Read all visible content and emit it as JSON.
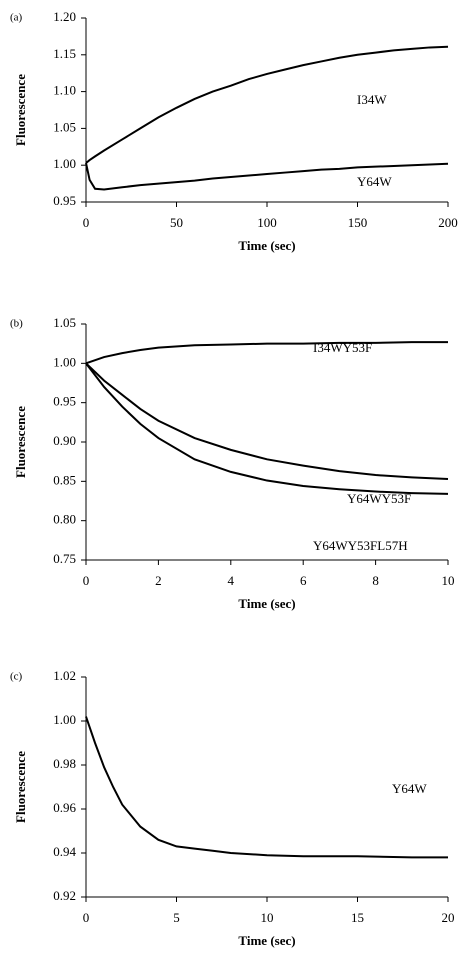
{
  "chart_data": [
    {
      "type": "line",
      "label": "(a)",
      "xlabel": "Time (sec)",
      "ylabel": "Fluorescence",
      "x": [
        0,
        2,
        5,
        10,
        20,
        30,
        40,
        50,
        60,
        70,
        80,
        90,
        100,
        110,
        120,
        130,
        140,
        150,
        160,
        170,
        180,
        190,
        200
      ],
      "series": [
        {
          "name": "I34W",
          "color": "#000000",
          "values": [
            1.003,
            1.007,
            1.012,
            1.02,
            1.035,
            1.05,
            1.065,
            1.078,
            1.09,
            1.1,
            1.108,
            1.117,
            1.124,
            1.13,
            1.136,
            1.141,
            1.146,
            1.15,
            1.153,
            1.156,
            1.158,
            1.16,
            1.161
          ]
        },
        {
          "name": "Y64W",
          "color": "#000000",
          "values": [
            1.003,
            0.98,
            0.968,
            0.967,
            0.97,
            0.973,
            0.975,
            0.977,
            0.979,
            0.982,
            0.984,
            0.986,
            0.988,
            0.99,
            0.992,
            0.994,
            0.995,
            0.997,
            0.998,
            0.999,
            1.0,
            1.001,
            1.002
          ]
        }
      ],
      "xlim": [
        0,
        200
      ],
      "xticks": [
        0,
        50,
        100,
        150,
        200
      ],
      "ylim": [
        0.95,
        1.2
      ],
      "yticks": [
        0.95,
        {
          "value": 1.0,
          "label": "1.00"
        },
        1.05,
        {
          "value": 1.1,
          "label": "1.10"
        },
        1.15,
        {
          "value": 1.2,
          "label": "1.20"
        }
      ]
    },
    {
      "type": "line",
      "label": "(b)",
      "xlabel": "Time (sec)",
      "ylabel": "Fluorescence",
      "x": [
        0,
        0.5,
        1,
        1.5,
        2,
        3,
        4,
        5,
        6,
        7,
        8,
        9,
        10
      ],
      "series": [
        {
          "name": "I34WY53F",
          "color": "#000000",
          "values": [
            1.0,
            1.008,
            1.013,
            1.017,
            1.02,
            1.023,
            1.024,
            1.025,
            1.025,
            1.026,
            1.026,
            1.027,
            1.027
          ]
        },
        {
          "name": "Y64WY53F",
          "color": "#000000",
          "values": [
            1.0,
            0.978,
            0.96,
            0.942,
            0.927,
            0.905,
            0.89,
            0.878,
            0.87,
            0.863,
            0.858,
            0.855,
            0.853
          ]
        },
        {
          "name": "Y64WY53FL57H",
          "color": "#000000",
          "values": [
            1.0,
            0.97,
            0.945,
            0.923,
            0.905,
            0.878,
            0.862,
            0.851,
            0.844,
            0.84,
            0.837,
            0.835,
            0.834
          ]
        }
      ],
      "xlim": [
        0,
        10
      ],
      "xticks": [
        0,
        2,
        4,
        6,
        8,
        10
      ],
      "ylim": [
        0.75,
        1.05
      ],
      "yticks": [
        0.75,
        {
          "value": 0.8,
          "label": "0.80"
        },
        0.85,
        {
          "value": 0.9,
          "label": "0.90"
        },
        0.95,
        {
          "value": 1.0,
          "label": "1.00"
        },
        1.05
      ]
    },
    {
      "type": "line",
      "label": "(c)",
      "xlabel": "Time (sec)",
      "ylabel": "Fluorescence",
      "x": [
        0,
        0.5,
        1,
        1.5,
        2,
        3,
        4,
        5,
        6,
        7,
        8,
        10,
        12,
        15,
        18,
        20
      ],
      "series": [
        {
          "name": "Y64W",
          "color": "#000000",
          "values": [
            1.002,
            0.99,
            0.979,
            0.97,
            0.962,
            0.952,
            0.946,
            0.943,
            0.942,
            0.941,
            0.94,
            0.939,
            0.9385,
            0.9385,
            0.938,
            0.938
          ]
        }
      ],
      "xlim": [
        0,
        20
      ],
      "xticks": [
        0,
        5,
        10,
        15,
        20
      ],
      "ylim": [
        0.92,
        1.02
      ],
      "yticks": [
        0.92,
        0.94,
        0.96,
        0.98,
        {
          "value": 1.0,
          "label": "1.00"
        },
        1.02
      ]
    }
  ]
}
